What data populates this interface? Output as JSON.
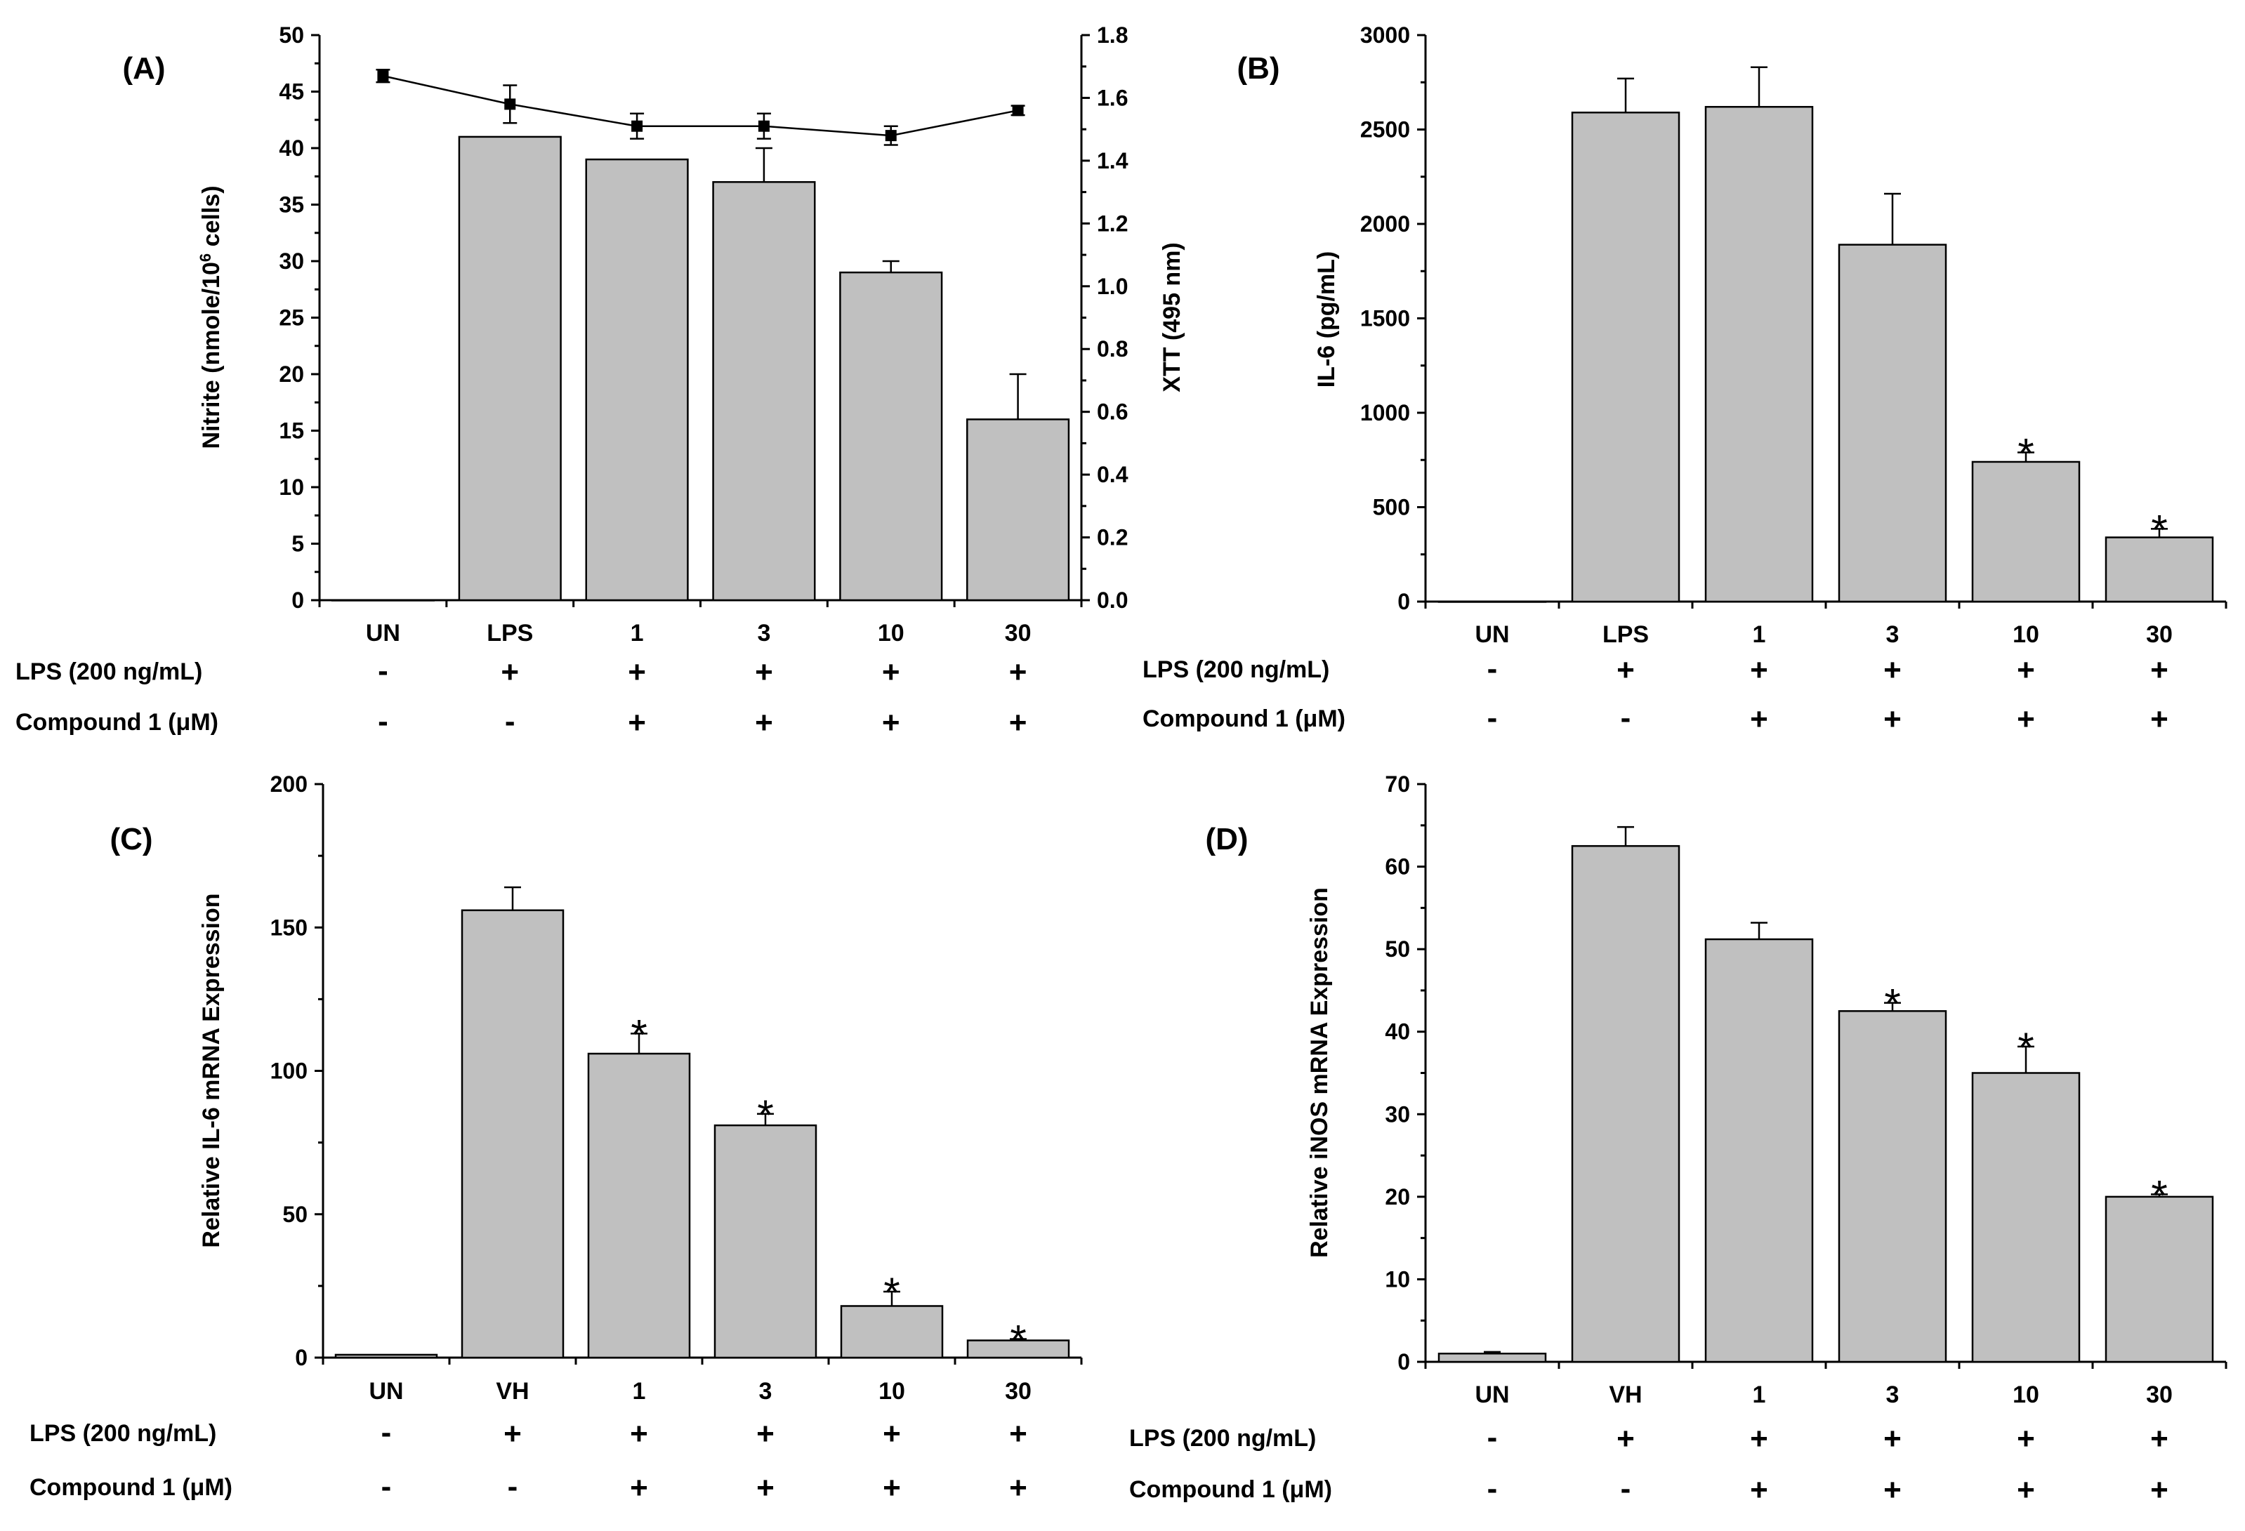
{
  "chart_data": [
    {
      "panel_label": "(A)",
      "type": "bar",
      "categories": [
        "UN",
        "LPS",
        "1",
        "3",
        "10",
        "30"
      ],
      "series": [
        {
          "name": "Nitrite",
          "axis": "left",
          "values": [
            0,
            41,
            39,
            37,
            29,
            16
          ],
          "errors": [
            0,
            0,
            0,
            3,
            1,
            4
          ],
          "significant": [
            false,
            false,
            false,
            false,
            false,
            false
          ]
        },
        {
          "name": "XTT",
          "axis": "right",
          "type": "line",
          "values": [
            1.67,
            1.58,
            1.51,
            1.51,
            1.48,
            1.56
          ],
          "errors": [
            0.02,
            0.06,
            0.04,
            0.04,
            0.03,
            0.015
          ]
        }
      ],
      "ylabel": "Nitrite (nmole/10<sup>6</sup> cells)",
      "ylabel_parts": {
        "pre": "Nitrite (nmole/10",
        "sup": "6",
        "post": " cells)"
      },
      "ylim": [
        0,
        50
      ],
      "yticks": [
        0,
        5,
        10,
        15,
        20,
        25,
        30,
        35,
        40,
        45,
        50
      ],
      "y2label": "XTT (495 nm)",
      "y2lim": [
        0,
        1.8
      ],
      "y2ticks": [
        "0.0",
        "0.2",
        "0.4",
        "0.6",
        "0.8",
        "1.0",
        "1.2",
        "1.4",
        "1.6",
        "1.8"
      ],
      "rows": [
        {
          "label": "LPS (200 ng/mL)",
          "signs": [
            "-",
            "+",
            "+",
            "+",
            "+",
            "+"
          ]
        },
        {
          "label": "Compound 1 (μM)",
          "signs": [
            "-",
            "-",
            "+",
            "+",
            "+",
            "+"
          ]
        }
      ]
    },
    {
      "panel_label": "(B)",
      "type": "bar",
      "categories": [
        "UN",
        "LPS",
        "1",
        "3",
        "10",
        "30"
      ],
      "series": [
        {
          "name": "IL-6",
          "values": [
            0,
            2590,
            2620,
            1890,
            740,
            340
          ],
          "errors": [
            0,
            180,
            210,
            270,
            50,
            45
          ],
          "significant": [
            false,
            false,
            false,
            false,
            true,
            true
          ]
        }
      ],
      "ylabel": "IL-6 (pg/mL)",
      "ylim": [
        0,
        3000
      ],
      "yticks": [
        0,
        500,
        1000,
        1500,
        2000,
        2500,
        3000
      ],
      "rows": [
        {
          "label": "LPS (200 ng/mL)",
          "signs": [
            "-",
            "+",
            "+",
            "+",
            "+",
            "+"
          ]
        },
        {
          "label": "Compound 1 (μM)",
          "signs": [
            "-",
            "-",
            "+",
            "+",
            "+",
            "+"
          ]
        }
      ]
    },
    {
      "panel_label": "(C)",
      "type": "bar",
      "categories": [
        "UN",
        "VH",
        "1",
        "3",
        "10",
        "30"
      ],
      "series": [
        {
          "name": "Relative IL-6 mRNA Expression",
          "values": [
            1,
            156,
            106,
            81,
            18,
            6
          ],
          "errors": [
            0,
            8,
            7,
            4,
            5,
            0.5
          ],
          "significant": [
            false,
            false,
            true,
            true,
            true,
            true
          ]
        }
      ],
      "ylabel": "Relative IL-6 mRNA Expression",
      "ylim": [
        0,
        200
      ],
      "yticks": [
        0,
        50,
        100,
        150,
        200
      ],
      "rows": [
        {
          "label": "LPS (200 ng/mL)",
          "signs": [
            "-",
            "+",
            "+",
            "+",
            "+",
            "+"
          ]
        },
        {
          "label": "Compound 1 (μM)",
          "signs": [
            "-",
            "-",
            "+",
            "+",
            "+",
            "+"
          ]
        }
      ]
    },
    {
      "panel_label": "(D)",
      "type": "bar",
      "categories": [
        "UN",
        "VH",
        "1",
        "3",
        "10",
        "30"
      ],
      "series": [
        {
          "name": "Relative iNOS mRNA Expression",
          "values": [
            1,
            62.5,
            51.2,
            42.5,
            35,
            20
          ],
          "errors": [
            0.2,
            2.3,
            2,
            1,
            3.2,
            0.3
          ],
          "significant": [
            false,
            false,
            false,
            true,
            true,
            true
          ]
        }
      ],
      "ylabel": "Relative iNOS mRNA Expression",
      "ylim": [
        0,
        70
      ],
      "yticks": [
        0,
        10,
        20,
        30,
        40,
        50,
        60,
        70
      ],
      "rows": [
        {
          "label": "LPS (200 ng/mL)",
          "signs": [
            "-",
            "+",
            "+",
            "+",
            "+",
            "+"
          ]
        },
        {
          "label": "Compound 1 (μM)",
          "signs": [
            "-",
            "-",
            "+",
            "+",
            "+",
            "+"
          ]
        }
      ]
    }
  ],
  "significance_marker": "*"
}
